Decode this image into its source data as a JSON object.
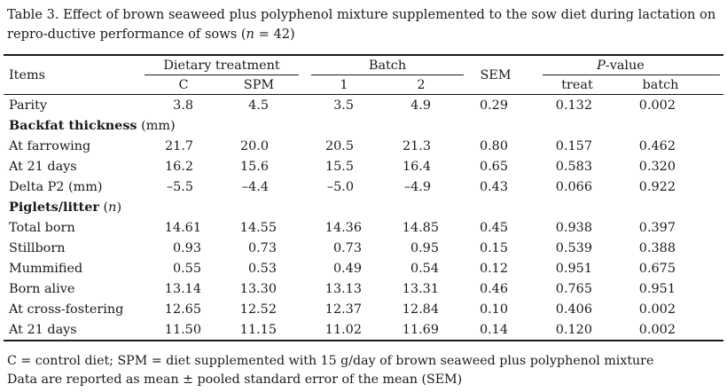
{
  "caption": {
    "prefix": "Table 3. Effect of brown seaweed plus polyphenol mixture supplemented to the sow diet during lactation on repro-ductive performance of sows (",
    "n_symbol": "n",
    "suffix": " = 42)"
  },
  "header": {
    "items": "Items",
    "dietary_treatment": "Dietary treatment",
    "batch": "Batch",
    "sem": "SEM",
    "p_value_italic": "P",
    "p_value_rest": "-value",
    "sub": [
      "C",
      "SPM",
      "1",
      "2",
      "treat",
      "batch"
    ]
  },
  "rows": [
    {
      "label": "Parity",
      "values": [
        "3.8",
        "4.5",
        "3.5",
        "4.9",
        "0.29",
        "0.132",
        "0.002"
      ]
    },
    {
      "section_bold": "Backfat thickness",
      "section_rest": " (mm)"
    },
    {
      "label": "At farrowing",
      "values": [
        "21.7",
        "20.0",
        "20.5",
        "21.3",
        "0.80",
        "0.157",
        "0.462"
      ]
    },
    {
      "label": "At 21 days",
      "values": [
        "16.2",
        "15.6",
        "15.5",
        "16.4",
        "0.65",
        "0.583",
        "0.320"
      ]
    },
    {
      "label": "Delta P2 (mm)",
      "values": [
        "–5.5",
        "–4.4",
        "–5.0",
        "–4.9",
        "0.43",
        "0.066",
        "0.922"
      ]
    },
    {
      "section_bold": "Piglets/litter",
      "section_rest_open": " (",
      "section_italic": "n",
      "section_rest_close": ")"
    },
    {
      "label": "Total born",
      "values": [
        "14.61",
        "14.55",
        "14.36",
        "14.85",
        "0.45",
        "0.938",
        "0.397"
      ]
    },
    {
      "label": "Stillborn",
      "values": [
        "0.93",
        "0.73",
        "0.73",
        "0.95",
        "0.15",
        "0.539",
        "0.388"
      ]
    },
    {
      "label": "Mummified",
      "values": [
        "0.55",
        "0.53",
        "0.49",
        "0.54",
        "0.12",
        "0.951",
        "0.675"
      ]
    },
    {
      "label": "Born alive",
      "values": [
        "13.14",
        "13.30",
        "13.13",
        "13.31",
        "0.46",
        "0.765",
        "0.951"
      ]
    },
    {
      "label": "At cross-fostering",
      "values": [
        "12.65",
        "12.52",
        "12.37",
        "12.84",
        "0.10",
        "0.406",
        "0.002"
      ]
    },
    {
      "label": "At 21 days",
      "values": [
        "11.50",
        "11.15",
        "11.02",
        "11.69",
        "0.14",
        "0.120",
        "0.002"
      ]
    }
  ],
  "footnotes": [
    "C = control diet; SPM = diet supplemented with 15 g/day of brown seaweed plus polyphenol mixture",
    "Data are reported as mean ± pooled standard error of the mean (SEM)"
  ]
}
